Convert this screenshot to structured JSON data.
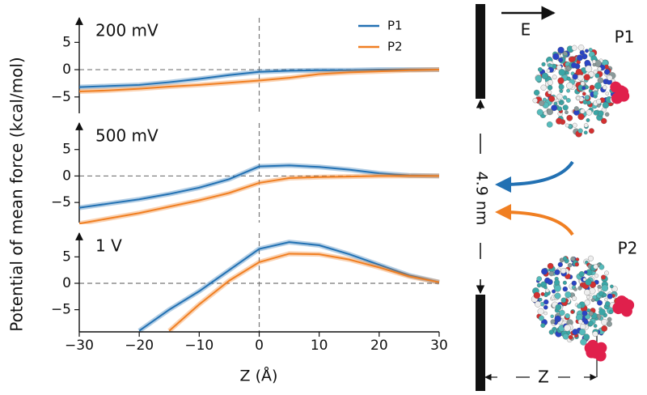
{
  "chart_data": [
    {
      "type": "line",
      "title": "200 mV",
      "y_label": "Potential of mean force (kcal/mol)",
      "legend": "upper right",
      "x": [
        -30,
        -25,
        -20,
        -15,
        -10,
        -5,
        0,
        5,
        10,
        15,
        20,
        25,
        30
      ],
      "xlim": [
        -30,
        30
      ],
      "ylim": [
        -8,
        9.5
      ],
      "yticks": [
        {
          "value": -5,
          "label": "−5"
        },
        0,
        5
      ],
      "series": [
        {
          "name": "P1",
          "color": "#2271b3",
          "values": [
            -3.2,
            -3.0,
            -2.8,
            -2.3,
            -1.7,
            -1.0,
            -0.4,
            -0.2,
            -0.1,
            -0.1,
            0,
            0,
            0
          ]
        },
        {
          "name": "P2",
          "color": "#f07f22",
          "values": [
            -4.0,
            -3.8,
            -3.5,
            -3.1,
            -2.8,
            -2.4,
            -2.0,
            -1.5,
            -0.8,
            -0.5,
            -0.3,
            -0.1,
            0
          ]
        }
      ]
    },
    {
      "type": "line",
      "title": "500 mV",
      "x": [
        -30,
        -25,
        -20,
        -15,
        -10,
        -5,
        0,
        5,
        10,
        15,
        20,
        25,
        30
      ],
      "xlim": [
        -30,
        30
      ],
      "ylim": [
        -8.8,
        10
      ],
      "yticks": [
        {
          "value": -5,
          "label": "−5"
        },
        0,
        5
      ],
      "series": [
        {
          "name": "P1",
          "color": "#2271b3",
          "values": [
            -6.0,
            -5.2,
            -4.4,
            -3.4,
            -2.2,
            -0.6,
            1.8,
            2.0,
            1.7,
            1.2,
            0.5,
            0.1,
            0
          ]
        },
        {
          "name": "P2",
          "color": "#f07f22",
          "values": [
            -9.0,
            -8.0,
            -7.0,
            -5.8,
            -4.6,
            -3.2,
            -1.3,
            -0.4,
            -0.2,
            -0.1,
            0,
            0,
            0
          ]
        }
      ]
    },
    {
      "type": "line",
      "title": "1 V",
      "x_label": "Z (Å)",
      "x": [
        -30,
        -25,
        -20,
        -15,
        -10,
        -5,
        0,
        5,
        10,
        15,
        20,
        25,
        30
      ],
      "xlim": [
        -30,
        30
      ],
      "ylim": [
        -9.2,
        9.5
      ],
      "xticks": [
        {
          "value": -30,
          "label": "−30"
        },
        {
          "value": -20,
          "label": "−20"
        },
        {
          "value": -10,
          "label": "−10"
        },
        0,
        10,
        20,
        30
      ],
      "yticks": [
        {
          "value": -5,
          "label": "−5"
        },
        0,
        5
      ],
      "series": [
        {
          "name": "P1",
          "color": "#2271b3",
          "values": [
            null,
            null,
            -9,
            -5,
            -1.5,
            2.5,
            6.5,
            7.8,
            7.2,
            5.5,
            3.5,
            1.5,
            0.2
          ]
        },
        {
          "name": "P2",
          "color": "#f07f22",
          "values": [
            null,
            null,
            null,
            -9,
            -4,
            0.5,
            4,
            5.6,
            5.5,
            4.5,
            3,
            1.3,
            0.2
          ]
        }
      ]
    }
  ],
  "schematic": {
    "field": "E",
    "protein_1": "P1",
    "protein_2": "P2",
    "distance": "4.9 nm",
    "z": "Z"
  }
}
